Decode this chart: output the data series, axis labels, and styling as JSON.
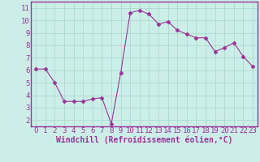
{
  "x": [
    0,
    1,
    2,
    3,
    4,
    5,
    6,
    7,
    8,
    9,
    10,
    11,
    12,
    13,
    14,
    15,
    16,
    17,
    18,
    19,
    20,
    21,
    22,
    23
  ],
  "y": [
    6.1,
    6.1,
    5.0,
    3.5,
    3.5,
    3.5,
    3.7,
    3.8,
    1.7,
    5.8,
    10.6,
    10.8,
    10.5,
    9.7,
    9.9,
    9.2,
    8.9,
    8.6,
    8.6,
    7.5,
    7.8,
    8.2,
    7.1,
    6.3
  ],
  "line_color": "#993399",
  "marker": "D",
  "marker_size": 2.5,
  "bg_color": "#cceee8",
  "grid_color": "#aaddcc",
  "xlabel": "Windchill (Refroidissement éolien,°C)",
  "ylim": [
    1.5,
    11.5
  ],
  "xlim": [
    -0.5,
    23.5
  ],
  "yticks": [
    2,
    3,
    4,
    5,
    6,
    7,
    8,
    9,
    10,
    11
  ],
  "xticks": [
    0,
    1,
    2,
    3,
    4,
    5,
    6,
    7,
    8,
    9,
    10,
    11,
    12,
    13,
    14,
    15,
    16,
    17,
    18,
    19,
    20,
    21,
    22,
    23
  ],
  "tick_fontsize": 6.5,
  "xlabel_fontsize": 7,
  "spine_color": "#993399",
  "xaxis_band_color": "#993399"
}
